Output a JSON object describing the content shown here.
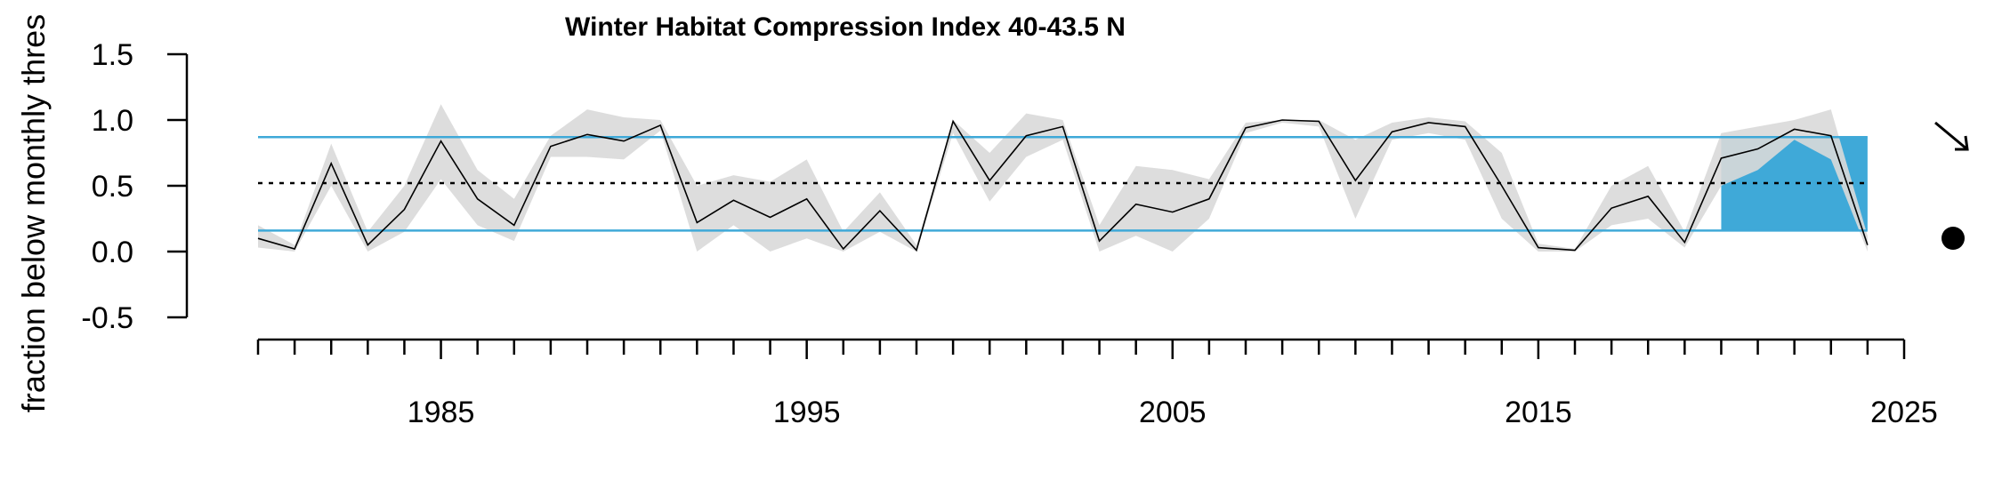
{
  "chart_data": {
    "type": "line",
    "title": "Winter Habitat Compression Index 40-43.5 N",
    "ylabel": "fraction below monthly thres",
    "xlabel": "",
    "xlim": [
      1980,
      2025
    ],
    "ylim": [
      -0.5,
      1.5
    ],
    "x_ticks": [
      1985,
      1995,
      2005,
      2015,
      2025
    ],
    "x_minor_step": 1,
    "y_ticks": [
      -0.5,
      0.0,
      0.5,
      1.0,
      1.5
    ],
    "y_tick_labels": [
      "-0.5",
      "0.0",
      "0.5",
      "1.0",
      "1.5"
    ],
    "colors": {
      "line": "#000000",
      "band": "#d9d9d9",
      "reference_lines": "#3fa9d8",
      "recent_fill": "#3fa9d8",
      "mean_line": "#000000"
    },
    "reference_lines": {
      "upper": 0.87,
      "lower": 0.16
    },
    "mean": 0.52,
    "recent_period": [
      2020,
      2024
    ],
    "trend_indicator": "down-arrow",
    "recent_mean_indicator": "below-lower-dot",
    "series": [
      {
        "x": [
          1980,
          1981,
          1982,
          1983,
          1984,
          1985,
          1986,
          1987,
          1988,
          1989,
          1990,
          1991,
          1992,
          1993,
          1994,
          1995,
          1996,
          1997,
          1998,
          1999,
          2000,
          2001,
          2002,
          2003,
          2004,
          2005,
          2006,
          2007,
          2008,
          2009,
          2010,
          2011,
          2012,
          2013,
          2014,
          2015,
          2016,
          2017,
          2018,
          2019,
          2020,
          2021,
          2022,
          2023,
          2024
        ],
        "y": [
          0.1,
          0.02,
          0.67,
          0.05,
          0.32,
          0.84,
          0.4,
          0.2,
          0.8,
          0.89,
          0.84,
          0.96,
          0.22,
          0.39,
          0.26,
          0.4,
          0.02,
          0.31,
          0.01,
          0.99,
          0.54,
          0.88,
          0.95,
          0.08,
          0.36,
          0.3,
          0.4,
          0.94,
          1.0,
          0.99,
          0.54,
          0.91,
          0.98,
          0.95,
          0.5,
          0.03,
          0.01,
          0.33,
          0.42,
          0.07,
          0.71,
          0.78,
          0.93,
          0.88,
          0.05
        ],
        "lower": [
          0.03,
          0.0,
          0.5,
          0.0,
          0.15,
          0.55,
          0.2,
          0.08,
          0.72,
          0.72,
          0.7,
          0.92,
          0.0,
          0.2,
          0.0,
          0.1,
          0.0,
          0.15,
          0.0,
          0.9,
          0.38,
          0.72,
          0.85,
          0.0,
          0.12,
          0.0,
          0.25,
          0.9,
          0.98,
          0.95,
          0.25,
          0.85,
          0.9,
          0.85,
          0.25,
          0.0,
          0.0,
          0.2,
          0.25,
          0.03,
          0.5,
          0.62,
          0.85,
          0.7,
          0.0
        ],
        "upper": [
          0.2,
          0.05,
          0.82,
          0.15,
          0.5,
          1.12,
          0.62,
          0.4,
          0.88,
          1.08,
          1.02,
          1.0,
          0.5,
          0.58,
          0.53,
          0.7,
          0.15,
          0.45,
          0.05,
          1.0,
          0.75,
          1.05,
          1.0,
          0.2,
          0.65,
          0.62,
          0.55,
          0.98,
          1.0,
          1.0,
          0.85,
          0.98,
          1.02,
          0.99,
          0.75,
          0.06,
          0.02,
          0.5,
          0.65,
          0.15,
          0.9,
          0.95,
          1.0,
          1.08,
          0.12
        ]
      }
    ]
  }
}
